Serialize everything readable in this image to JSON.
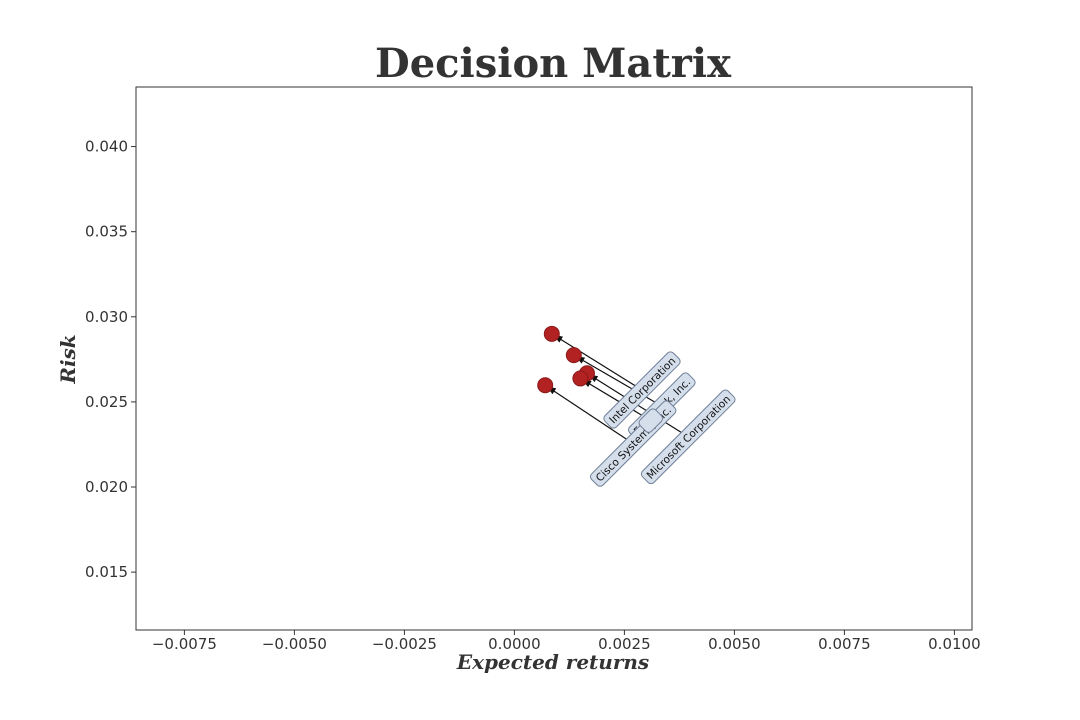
{
  "chart_data": {
    "type": "scatter",
    "title": "Decision Matrix",
    "xlabel": "Expected returns",
    "ylabel": "Risk",
    "xlim": [
      -0.0086,
      0.0104
    ],
    "ylim": [
      0.0116,
      0.0435
    ],
    "x_ticks": [
      {
        "value": -0.0075,
        "label": "−0.0075"
      },
      {
        "value": -0.005,
        "label": "−0.0050"
      },
      {
        "value": -0.0025,
        "label": "−0.0025"
      },
      {
        "value": 0.0,
        "label": "0.0000"
      },
      {
        "value": 0.0025,
        "label": "0.0025"
      },
      {
        "value": 0.005,
        "label": "0.0050"
      },
      {
        "value": 0.0075,
        "label": "0.0075"
      },
      {
        "value": 0.01,
        "label": "0.0100"
      }
    ],
    "y_ticks": [
      {
        "value": 0.015,
        "label": "0.015"
      },
      {
        "value": 0.02,
        "label": "0.020"
      },
      {
        "value": 0.025,
        "label": "0.025"
      },
      {
        "value": 0.03,
        "label": "0.030"
      },
      {
        "value": 0.035,
        "label": "0.035"
      },
      {
        "value": 0.04,
        "label": "0.040"
      }
    ],
    "grid": false,
    "points": [
      {
        "label": "Intel Corporation",
        "x": 0.00085,
        "y": 0.029,
        "label_x": 0.0029,
        "label_y": 0.0257
      },
      {
        "label": "Facebook, Inc.",
        "x": 0.00135,
        "y": 0.02775,
        "label_x": 0.00335,
        "label_y": 0.02475
      },
      {
        "label": "Cisco Systems, Inc.",
        "x": 0.0007,
        "y": 0.02598,
        "label_x": 0.0027,
        "label_y": 0.02255
      },
      {
        "label": "Microsoft Corporation",
        "x": 0.00165,
        "y": 0.02668,
        "label_x": 0.00395,
        "label_y": 0.02295
      },
      {
        "label": "",
        "x": 0.0015,
        "y": 0.02638,
        "label_x": 0.0031,
        "label_y": 0.0239
      }
    ],
    "colors": {
      "marker": "#b22222",
      "marker_edge": "#8b1a1a",
      "label_fill": "#d5dfec",
      "label_edge": "#6f7f95",
      "arrow": "#111111",
      "text": "#333333"
    }
  }
}
